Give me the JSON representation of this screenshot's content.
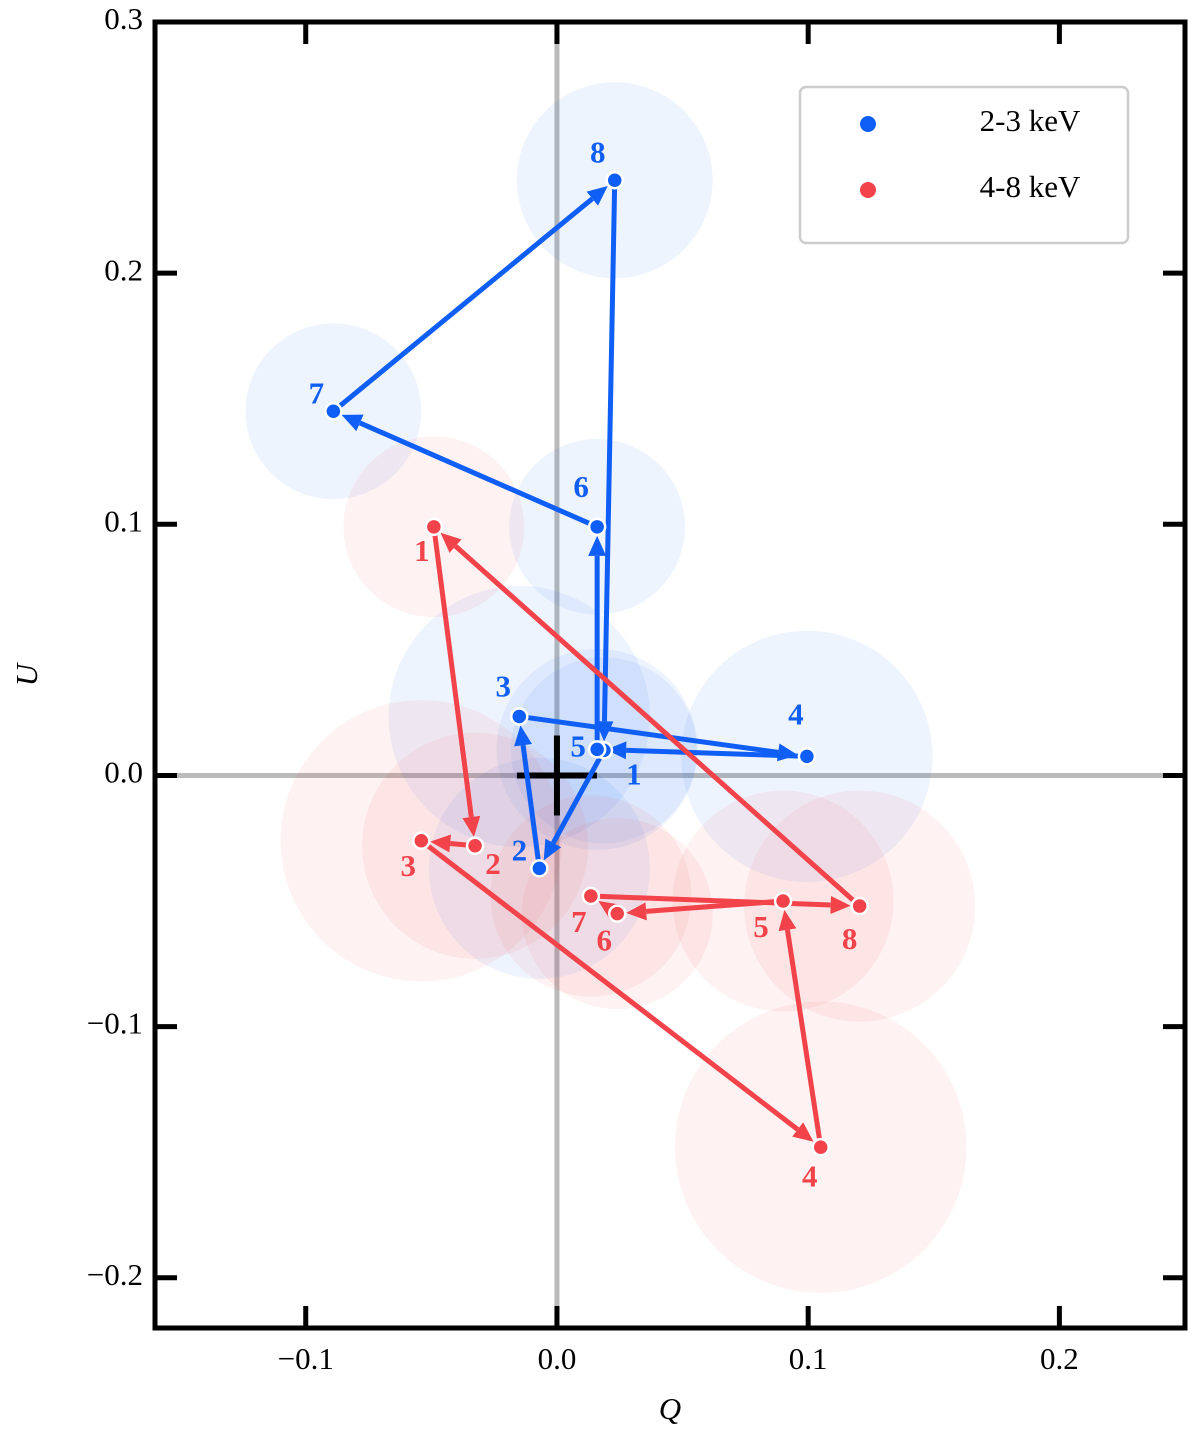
{
  "chart_data": {
    "type": "scatter",
    "xlabel": "Q",
    "ylabel": "U",
    "xlim": [
      -0.16,
      0.25
    ],
    "ylim": [
      -0.22,
      0.3
    ],
    "xticks": [
      {
        "value": -0.1,
        "label": "−0.1"
      },
      {
        "value": 0,
        "label": "0.0"
      },
      0.1,
      0.2
    ],
    "yticks": [
      {
        "value": -0.2,
        "label": "−0.2"
      },
      {
        "value": -0.1,
        "label": "−0.1"
      },
      {
        "value": 0,
        "label": "0.0"
      },
      0.1,
      0.2,
      0.3
    ],
    "legend": "upper right",
    "series": [
      {
        "name": "2-3 keV",
        "color": "#0f5ef5",
        "point_labels": [
          "1",
          "2",
          "3",
          "4",
          "5",
          "6",
          "7",
          "8"
        ],
        "x": [
          0.0187,
          -0.007,
          -0.015,
          0.0995,
          0.016,
          0.016,
          -0.089,
          0.023
        ],
        "values": [
          0.01,
          -0.037,
          0.0235,
          0.0076,
          0.0104,
          0.099,
          0.145,
          0.237
        ],
        "errors": [
          0.037,
          0.044,
          0.052,
          0.05,
          0.04,
          0.035,
          0.035,
          0.039
        ]
      },
      {
        "name": "4-8 keV",
        "color": "#f2434b",
        "point_labels": [
          "1",
          "2",
          "3",
          "4",
          "5",
          "6",
          "7",
          "8"
        ],
        "x": [
          -0.049,
          -0.0326,
          -0.054,
          0.105,
          0.09,
          0.024,
          0.0135,
          0.1205
        ],
        "values": [
          0.099,
          -0.028,
          -0.026,
          -0.148,
          -0.05,
          -0.055,
          -0.048,
          -0.052
        ],
        "errors": [
          0.036,
          0.045,
          0.056,
          0.058,
          0.044,
          0.038,
          0.04,
          0.046
        ]
      }
    ]
  }
}
